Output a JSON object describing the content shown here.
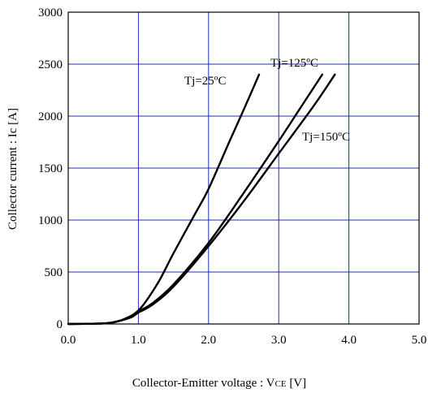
{
  "chart_data": {
    "type": "line",
    "xlabel_prefix": "Collector-Emitter voltage : V",
    "xlabel_sub": "CE",
    "xlabel_suffix": " [V]",
    "ylabel": "Collector current : Ic [A]",
    "xlim": [
      0,
      5
    ],
    "ylim": [
      0,
      3000
    ],
    "x_ticks": [
      "0.0",
      "1.0",
      "2.0",
      "3.0",
      "4.0",
      "5.0"
    ],
    "y_ticks": [
      "0",
      "500",
      "1000",
      "1500",
      "2000",
      "2500",
      "3000"
    ],
    "grid": true,
    "grid_color": "#1f2fbf",
    "line_color": "#000000",
    "series": [
      {
        "name": "Tj=25ºC",
        "x": [
          0,
          0.5,
          0.7,
          0.9,
          1.0,
          1.1,
          1.3,
          1.5,
          1.8,
          2.0,
          2.3,
          2.5,
          2.72
        ],
        "y": [
          0,
          5,
          25,
          80,
          130,
          210,
          420,
          680,
          1050,
          1300,
          1760,
          2060,
          2400
        ]
      },
      {
        "name": "Tj=125ºC",
        "x": [
          0,
          0.5,
          0.7,
          0.9,
          1.0,
          1.2,
          1.5,
          2.0,
          2.5,
          3.0,
          3.3,
          3.62
        ],
        "y": [
          0,
          5,
          25,
          70,
          120,
          200,
          380,
          780,
          1260,
          1760,
          2070,
          2400
        ]
      },
      {
        "name": "Tj=150ºC",
        "x": [
          0,
          0.5,
          0.7,
          0.9,
          1.0,
          1.2,
          1.5,
          2.0,
          2.5,
          3.0,
          3.5,
          3.8
        ],
        "y": [
          0,
          5,
          25,
          65,
          110,
          185,
          360,
          750,
          1180,
          1640,
          2100,
          2400
        ]
      }
    ]
  }
}
